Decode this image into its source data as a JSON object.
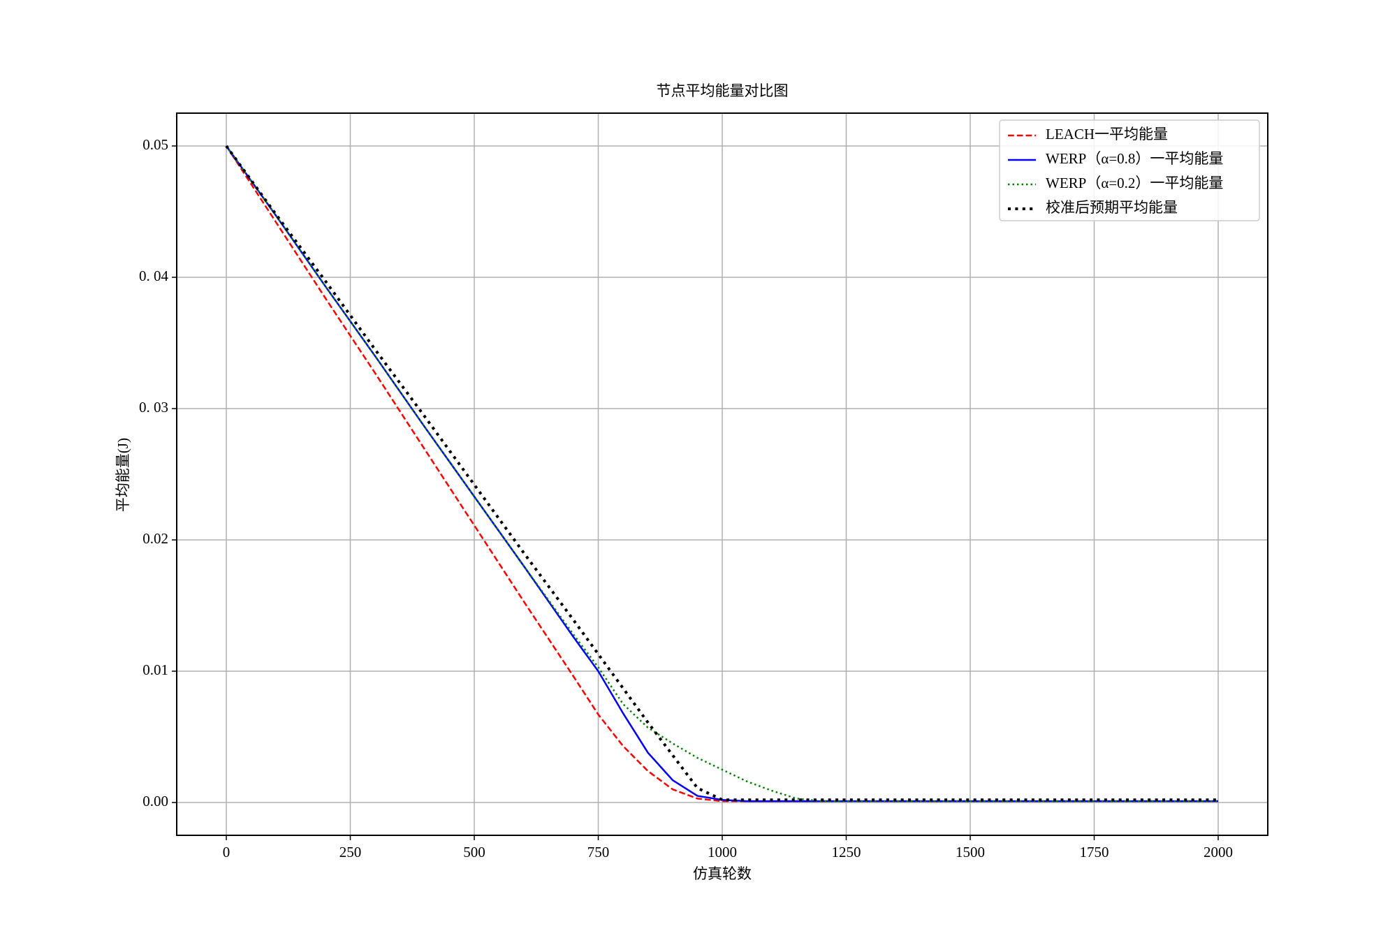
{
  "chart_data": {
    "type": "line",
    "title": "节点平均能量对比图",
    "xlabel": "仿真轮数",
    "ylabel": "平均能量(J)",
    "x": [
      0,
      100,
      200,
      300,
      400,
      500,
      600,
      700,
      750,
      800,
      850,
      900,
      950,
      1000,
      1050,
      1100,
      1150,
      1200,
      1500,
      2000
    ],
    "series": [
      {
        "name": "LEACH一平均能量",
        "color": "#ff0000",
        "linestyle": "dashed",
        "linewidth": 2.5,
        "values": [
          0.05,
          0.0442,
          0.0384,
          0.0327,
          0.0269,
          0.0211,
          0.0153,
          0.0096,
          0.0067,
          0.0043,
          0.0024,
          0.001,
          0.0003,
          0.0001,
          0.0001,
          0.0001,
          0.0001,
          0.0001,
          0.0001,
          0.0001
        ]
      },
      {
        "name": "WERP（α=0.8）一平均能量",
        "color": "#0000ff",
        "linestyle": "solid",
        "linewidth": 2.5,
        "values": [
          0.05,
          0.0447,
          0.0393,
          0.034,
          0.0286,
          0.0233,
          0.018,
          0.0126,
          0.01,
          0.0068,
          0.0038,
          0.0017,
          0.0005,
          0.0002,
          0.0001,
          0.0001,
          0.0001,
          0.0001,
          0.0001,
          0.0001
        ]
      },
      {
        "name": "WERP（α=0.2）一平均能量",
        "color": "#008000",
        "linestyle": "dotted",
        "linewidth": 2.5,
        "values": [
          0.05,
          0.0447,
          0.0393,
          0.034,
          0.0286,
          0.0233,
          0.018,
          0.0128,
          0.0103,
          0.0075,
          0.0057,
          0.0045,
          0.0034,
          0.0025,
          0.0016,
          0.0009,
          0.0003,
          0.0001,
          0.0001,
          0.0001
        ]
      },
      {
        "name": "校准后预期平均能量",
        "color": "#000000",
        "linestyle": "dotted",
        "linewidth": 4,
        "values": [
          0.05,
          0.0448,
          0.0397,
          0.0345,
          0.0294,
          0.0242,
          0.019,
          0.0139,
          0.0113,
          0.0087,
          0.0061,
          0.0036,
          0.0011,
          0.0002,
          0.0002,
          0.0002,
          0.0002,
          0.0002,
          0.0002,
          0.0002
        ]
      }
    ],
    "xlim": [
      -100,
      2100
    ],
    "ylim": [
      -0.0025,
      0.0525
    ],
    "xticks": [
      0,
      250,
      500,
      750,
      1000,
      1250,
      1500,
      1750,
      2000
    ],
    "yticks": [
      {
        "value": 0,
        "label": "0.00"
      },
      0.01,
      0.02,
      {
        "value": 0.03,
        "label": "0. 03"
      },
      {
        "value": 0.04,
        "label": "0. 04"
      },
      0.05
    ],
    "grid": true,
    "legend": "upper right"
  }
}
